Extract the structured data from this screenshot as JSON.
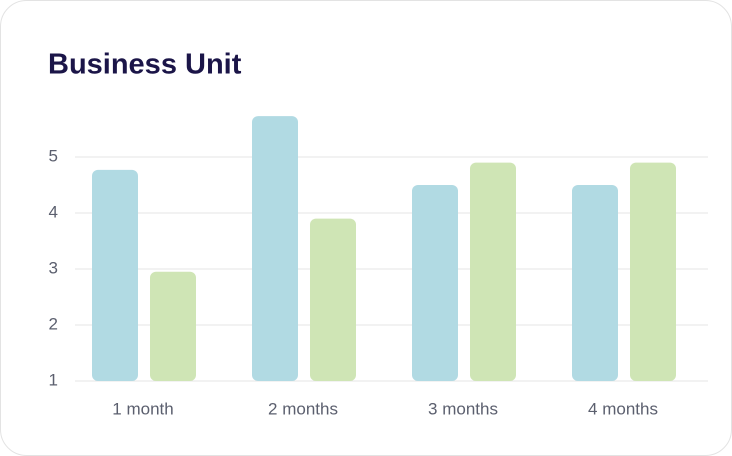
{
  "chart_data": {
    "type": "bar",
    "title": "Business Unit",
    "categories": [
      "1 month",
      "2 months",
      "3 months",
      "4 months"
    ],
    "series": [
      {
        "color": "#b1dae3",
        "values": [
          4.77,
          5.73,
          4.5,
          4.5
        ]
      },
      {
        "color": "#cfe5b5",
        "values": [
          2.95,
          3.9,
          4.9,
          4.9
        ]
      }
    ],
    "ylim": [
      1,
      6
    ],
    "yticks": [
      1,
      2,
      3,
      4,
      5
    ],
    "grid": true
  }
}
